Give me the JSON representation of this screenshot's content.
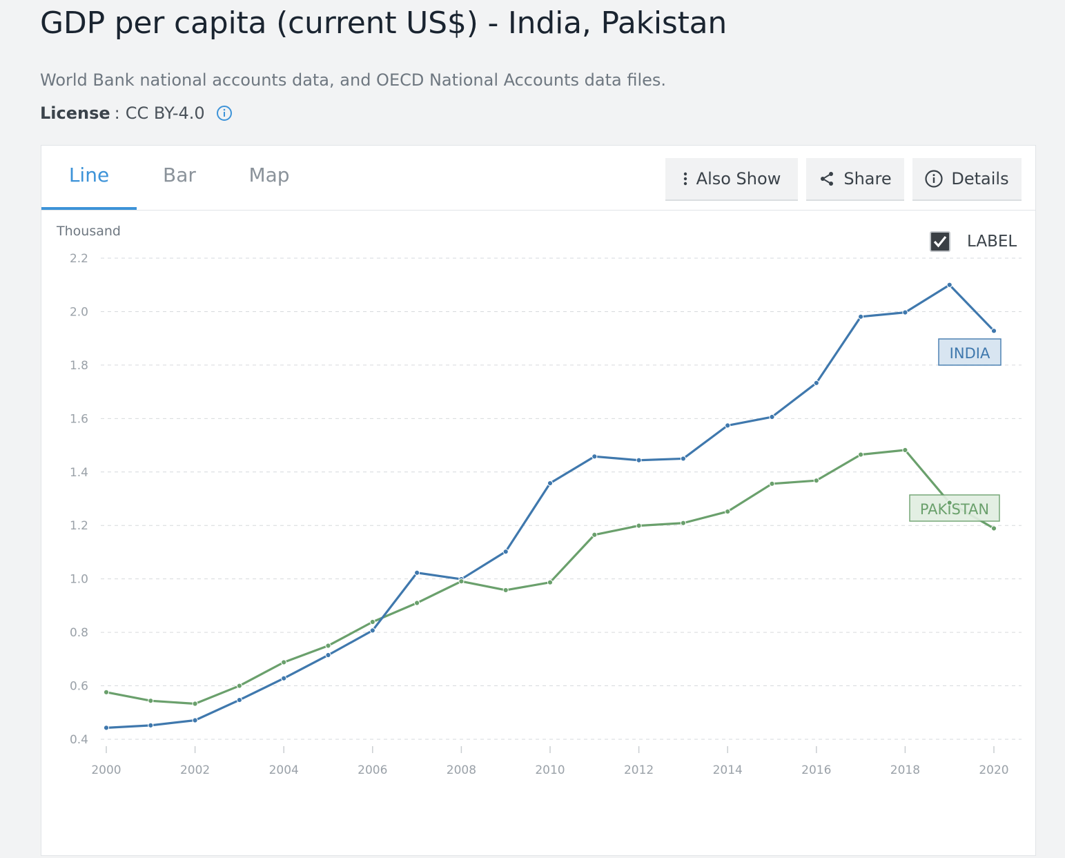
{
  "header": {
    "title": "GDP per capita (current US$) - India, Pakistan",
    "source": "World Bank national accounts data, and OECD National Accounts data files.",
    "license_key": "License",
    "license_value": "CC BY-4.0"
  },
  "tabs": [
    {
      "label": "Line",
      "active": true
    },
    {
      "label": "Bar",
      "active": false
    },
    {
      "label": "Map",
      "active": false
    }
  ],
  "toolbar": {
    "also_show": "Also Show",
    "share": "Share",
    "details": "Details"
  },
  "label_toggle": {
    "label": "LABEL",
    "checked": true
  },
  "colors": {
    "accent": "#3d93d8",
    "india": "#3f78ad",
    "pakistan": "#6aa06c"
  },
  "chart_data": {
    "type": "line",
    "unit_label": "Thousand",
    "ylim": [
      0.4,
      2.2
    ],
    "yticks": [
      "0.4",
      "0.6",
      "0.8",
      "1.0",
      "1.2",
      "1.4",
      "1.6",
      "1.8",
      "2.0",
      "2.2"
    ],
    "xlim": [
      2000,
      2020
    ],
    "xticks": [
      "2000",
      "2002",
      "2004",
      "2006",
      "2008",
      "2010",
      "2012",
      "2014",
      "2016",
      "2018",
      "2020"
    ],
    "grid": true,
    "x": [
      2000,
      2001,
      2002,
      2003,
      2004,
      2005,
      2006,
      2007,
      2008,
      2009,
      2010,
      2011,
      2012,
      2013,
      2014,
      2015,
      2016,
      2017,
      2018,
      2019,
      2020
    ],
    "series": [
      {
        "name": "INDIA",
        "values": [
          0.443,
          0.452,
          0.471,
          0.547,
          0.628,
          0.715,
          0.807,
          1.023,
          0.999,
          1.102,
          1.358,
          1.458,
          1.444,
          1.45,
          1.574,
          1.606,
          1.733,
          1.981,
          1.997,
          2.1,
          1.928
        ]
      },
      {
        "name": "PAKISTAN",
        "values": [
          0.576,
          0.544,
          0.533,
          0.6,
          0.688,
          0.75,
          0.839,
          0.91,
          0.991,
          0.958,
          0.987,
          1.165,
          1.199,
          1.209,
          1.252,
          1.356,
          1.368,
          1.465,
          1.482,
          1.285,
          1.189
        ]
      }
    ]
  }
}
